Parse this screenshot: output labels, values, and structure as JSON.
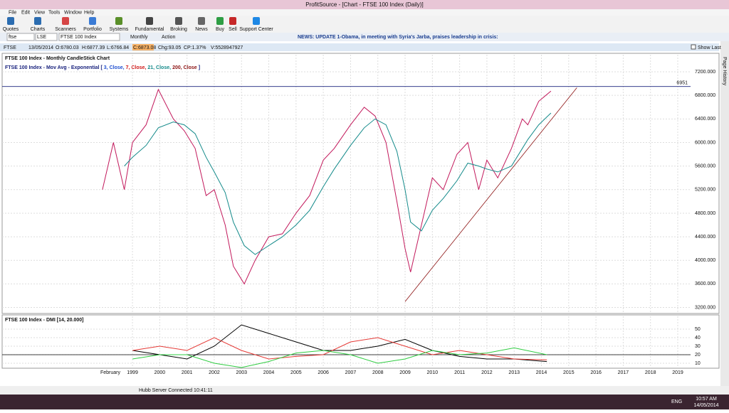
{
  "window": {
    "title": "ProfitSource - [Chart - FTSE 100 Index (Daily)]"
  },
  "menu": [
    "File",
    "Edit",
    "View",
    "Tools",
    "Window",
    "Help"
  ],
  "toolbar": [
    "Quotes",
    "Charts",
    "Scanners",
    "Portfolio",
    "Systems",
    "Fundamental",
    "Broking",
    "News",
    "Buy",
    "Sell",
    "Support Center"
  ],
  "search": {
    "symbol": "ftse",
    "exchange": "LSE",
    "name": "FTSE 100 Index",
    "period": "Monthly",
    "action": "Action",
    "news": "NEWS: UPDATE 1-Obama, in meeting with Syria's Jarba, praises leadership in crisis:"
  },
  "quote_bar": {
    "items": [
      "FTSE",
      "13/05/2014",
      "O:6780.03",
      "H:6877.39",
      "L:6766.84",
      "C:6873.08",
      "Chg:93.05",
      "CP:1.37%",
      "V:5528947927"
    ],
    "show_last": "Show Last"
  },
  "side_tab": "Page History",
  "chart_data": [
    {
      "type": "line",
      "title": "FTSE 100 Index - Monthly CandleStick Chart",
      "legend_parts": [
        {
          "text": "FTSE 100 Index - Mov Avg - Exponential [",
          "color": "#1a237e"
        },
        {
          "text": "3, Close,",
          "color": "#1f4fd0"
        },
        {
          "text": "7, Close,",
          "color": "#d01818"
        },
        {
          "text": "21, Close,",
          "color": "#138a8a"
        },
        {
          "text": "200, Close",
          "color": "#8b1010"
        },
        {
          "text": "]",
          "color": "#1a237e"
        }
      ],
      "x": [
        1997.9,
        1998.3,
        1998.7,
        1999.0,
        1999.5,
        1999.95,
        2000.5,
        2000.9,
        2001.3,
        2001.7,
        2002.0,
        2002.4,
        2002.7,
        2003.1,
        2003.5,
        2004.0,
        2004.5,
        2005.0,
        2005.5,
        2006.0,
        2006.4,
        2007.0,
        2007.5,
        2007.9,
        2008.3,
        2008.7,
        2009.0,
        2009.2,
        2009.6,
        2010.0,
        2010.4,
        2010.9,
        2011.3,
        2011.7,
        2012.0,
        2012.4,
        2012.9,
        2013.3,
        2013.5,
        2013.9,
        2014.35
      ],
      "series": [
        {
          "color": "#c2185b",
          "values": [
            5200,
            6000,
            5200,
            6000,
            6300,
            6900,
            6400,
            6200,
            5900,
            5100,
            5200,
            4600,
            3900,
            3600,
            4000,
            4400,
            4450,
            4800,
            5100,
            5700,
            5900,
            6300,
            6600,
            6450,
            6000,
            5000,
            4200,
            3800,
            4600,
            5400,
            5200,
            5800,
            6000,
            5200,
            5700,
            5400,
            5900,
            6400,
            6300,
            6700,
            6873
          ]
        },
        {
          "color": "#138a8a",
          "values": [
            null,
            null,
            5600,
            5750,
            5950,
            6250,
            6350,
            6300,
            6150,
            5750,
            5500,
            5150,
            4650,
            4250,
            4100,
            4250,
            4400,
            4600,
            4850,
            5250,
            5550,
            5950,
            6250,
            6400,
            6300,
            5850,
            5200,
            4650,
            4500,
            4850,
            5050,
            5350,
            5650,
            5600,
            5550,
            5500,
            5600,
            5900,
            6050,
            6300,
            6500
          ]
        }
      ],
      "hline": {
        "value": 6951,
        "label": "6951",
        "color": "#1a237e"
      },
      "trendline": {
        "x": [
          2009.0,
          2015.3
        ],
        "y": [
          3300,
          6930
        ],
        "color": "#8b1010"
      },
      "xlim": [
        1994.22,
        2019.47
      ],
      "ylim": [
        3110,
        7490
      ],
      "start_label": "February",
      "xticks": [
        1999,
        2000,
        2001,
        2002,
        2003,
        2004,
        2005,
        2006,
        2007,
        2008,
        2009,
        2010,
        2011,
        2012,
        2013,
        2014,
        2015,
        2016,
        2017,
        2018,
        2019
      ],
      "yticks": [
        {
          "value": 3200,
          "label": "3200.000"
        },
        {
          "value": 3600,
          "label": "3600.000"
        },
        {
          "value": 4000,
          "label": "4000.000"
        },
        {
          "value": 4400,
          "label": "4400.000"
        },
        {
          "value": 4800,
          "label": "4800.000"
        },
        {
          "value": 5200,
          "label": "5200.000"
        },
        {
          "value": 5600,
          "label": "5600.000"
        },
        {
          "value": 6000,
          "label": "6000.000"
        },
        {
          "value": 6400,
          "label": "6400.000"
        },
        {
          "value": 6800,
          "label": "6800.000"
        },
        {
          "value": 7200,
          "label": "7200.000"
        }
      ],
      "grid": true
    },
    {
      "type": "line",
      "title": "FTSE 100 Index - DMI [14, 20.000]",
      "x": [
        1999,
        2000,
        2001,
        2002,
        2003,
        2004,
        2005,
        2006,
        2007,
        2008,
        2009,
        2010,
        2011,
        2012,
        2013,
        2014.2
      ],
      "series": [
        {
          "color": "#000000",
          "values": [
            25,
            20,
            15,
            30,
            55,
            45,
            35,
            25,
            25,
            30,
            38,
            25,
            18,
            15,
            15,
            12
          ]
        },
        {
          "color": "#e53935",
          "values": [
            25,
            30,
            25,
            40,
            25,
            15,
            18,
            20,
            35,
            40,
            30,
            20,
            25,
            20,
            15,
            14
          ]
        },
        {
          "color": "#2ecc40",
          "values": [
            15,
            20,
            20,
            10,
            5,
            12,
            22,
            25,
            20,
            10,
            15,
            25,
            20,
            22,
            28,
            20
          ]
        }
      ],
      "hline": {
        "value": 20,
        "color": "#000000"
      },
      "xlim": [
        1994.22,
        2019.47
      ],
      "ylim": [
        5,
        65
      ],
      "yticks": [
        10,
        20,
        30,
        40,
        50
      ],
      "grid": true
    }
  ],
  "status": {
    "text": "Hubb Server Connected 10:41:11"
  },
  "taskbar": {
    "lang": "ENG",
    "time": "10:57 AM",
    "date": "14/05/2014"
  }
}
